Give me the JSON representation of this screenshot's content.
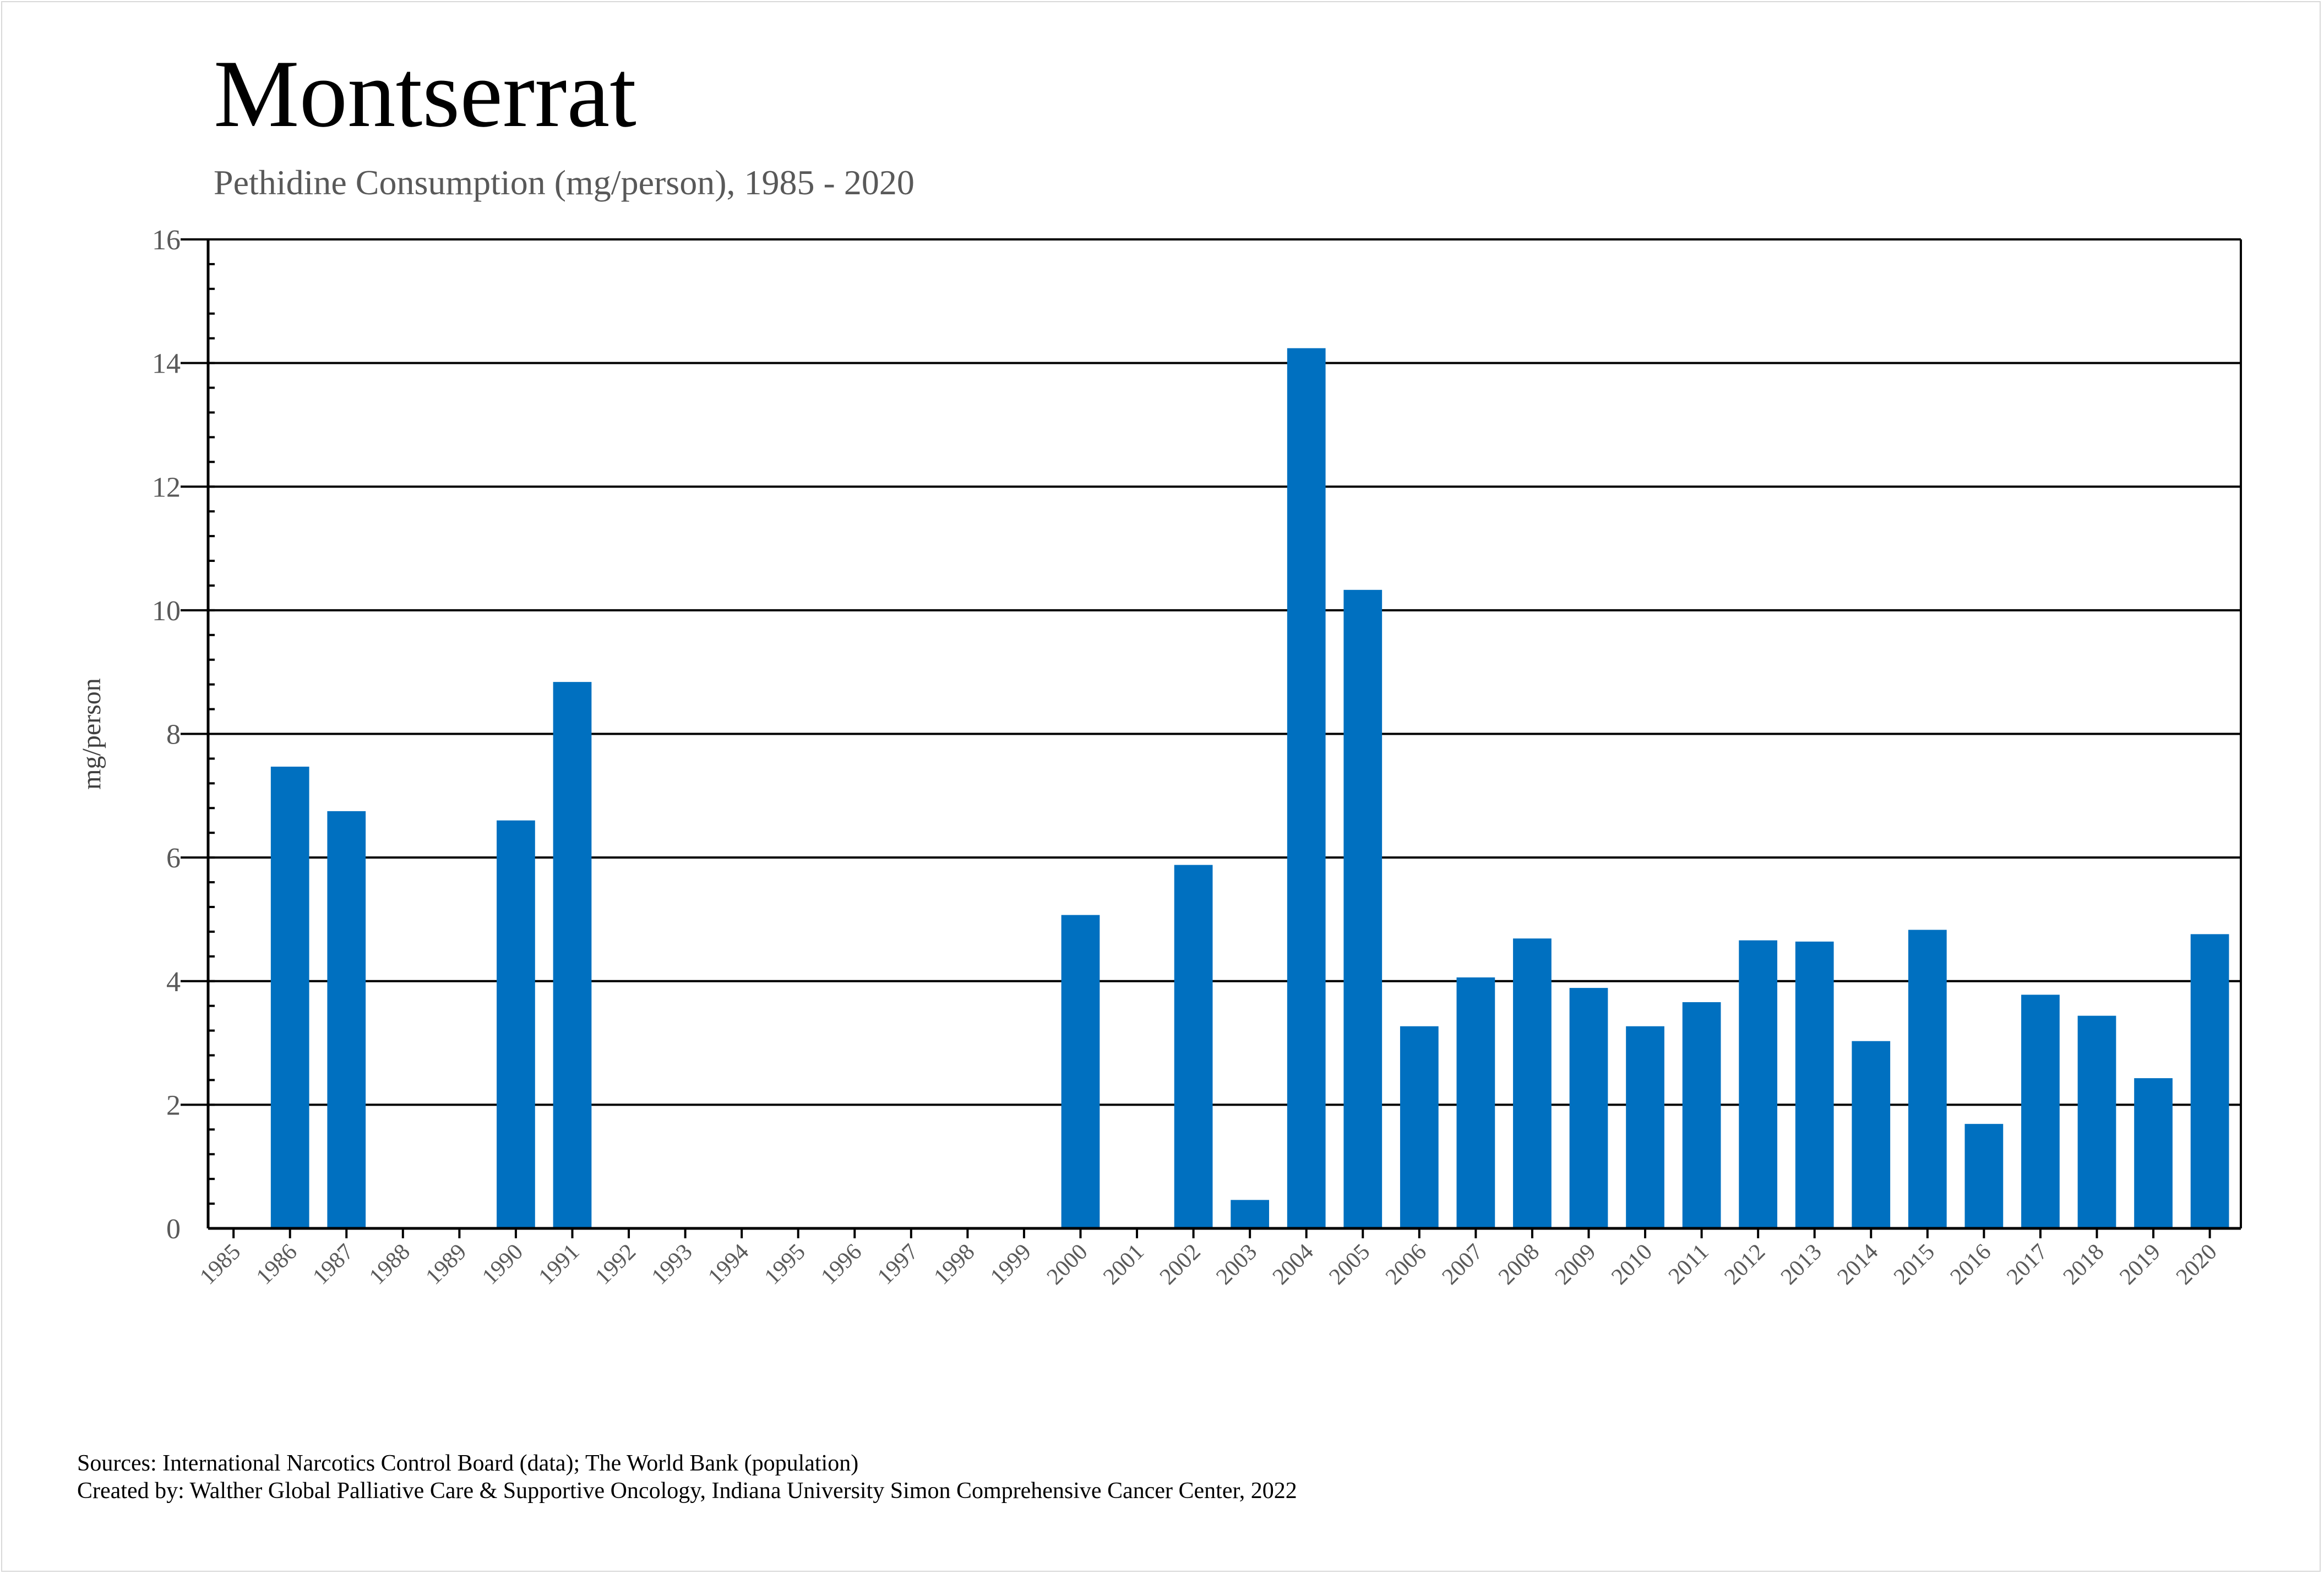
{
  "title": "Montserrat",
  "subtitle": "Pethidine Consumption (mg/person), 1985 - 2020",
  "footer": {
    "sources": "Sources: International Narcotics Control Board (data); The World Bank (population)",
    "created_by": "Created by: Walther Global Palliative Care & Supportive Oncology, Indiana University Simon Comprehensive Cancer Center, 2022"
  },
  "chart_data": {
    "type": "bar",
    "title": "Montserrat",
    "subtitle": "Pethidine Consumption (mg/person), 1985 - 2020",
    "xlabel": "",
    "ylabel": "mg/person",
    "ylim": [
      0,
      16
    ],
    "yticks": [
      0,
      2,
      4,
      6,
      8,
      10,
      12,
      14,
      16
    ],
    "grid": true,
    "bar_color": "#0070C0",
    "categories": [
      "1985",
      "1986",
      "1987",
      "1988",
      "1989",
      "1990",
      "1991",
      "1992",
      "1993",
      "1994",
      "1995",
      "1996",
      "1997",
      "1998",
      "1999",
      "2000",
      "2001",
      "2002",
      "2003",
      "2004",
      "2005",
      "2006",
      "2007",
      "2008",
      "2009",
      "2010",
      "2011",
      "2012",
      "2013",
      "2014",
      "2015",
      "2016",
      "2017",
      "2018",
      "2019",
      "2020"
    ],
    "values": [
      0,
      7.47,
      6.75,
      0,
      0,
      6.6,
      8.84,
      0,
      0,
      0,
      0,
      0,
      0,
      0,
      0,
      5.07,
      0,
      5.88,
      0.46,
      14.24,
      10.33,
      3.27,
      4.06,
      4.69,
      3.89,
      3.27,
      3.66,
      4.66,
      4.64,
      3.03,
      4.83,
      1.69,
      3.78,
      3.44,
      2.43,
      4.76
    ]
  }
}
